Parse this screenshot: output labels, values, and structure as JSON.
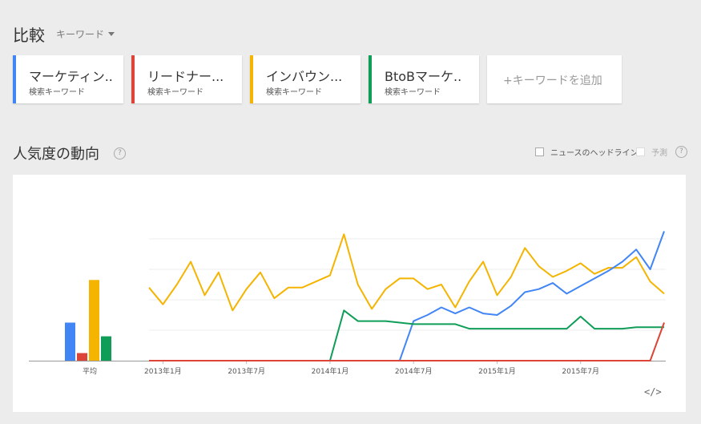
{
  "header": {
    "title": "比較",
    "dropdown_label": "キーワード"
  },
  "keywords": [
    {
      "label": "マーケティン..",
      "sub": "検索キーワード",
      "color": "#4285f4"
    },
    {
      "label": "リードナー...",
      "sub": "検索キーワード",
      "color": "#db4437"
    },
    {
      "label": "インバウン...",
      "sub": "検索キーワード",
      "color": "#f4b400"
    },
    {
      "label": "BtoBマーケ..",
      "sub": "検索キーワード",
      "color": "#0f9d58"
    }
  ],
  "add_keyword": "+キーワードを追加",
  "section": {
    "title": "人気度の動向",
    "help": "?"
  },
  "options": {
    "news_headlines": "ニュースのヘッドライン",
    "forecast": "予測",
    "help": "?"
  },
  "embed_label": "</>",
  "chart_data": {
    "type": "line",
    "ylim": [
      0,
      100
    ],
    "x_ticks": [
      "2013年1月",
      "2013年7月",
      "2014年1月",
      "2014年7月",
      "2015年1月",
      "2015年7月"
    ],
    "x_tick_positions": [
      1,
      7,
      13,
      19,
      25,
      31
    ],
    "average": {
      "label": "平均",
      "values": [
        25,
        5,
        53,
        16
      ]
    },
    "series": [
      {
        "color": "#4285f4",
        "values": [
          0,
          0,
          0,
          0,
          0,
          0,
          0,
          0,
          0,
          0,
          0,
          0,
          0,
          0,
          0,
          0,
          0,
          0,
          0,
          26,
          30,
          35,
          31,
          35,
          31,
          30,
          36,
          45,
          47,
          51,
          44,
          49,
          54,
          59,
          65,
          73,
          60,
          85
        ]
      },
      {
        "color": "#db4437",
        "values": [
          0,
          0,
          0,
          0,
          0,
          0,
          0,
          0,
          0,
          0,
          0,
          0,
          0,
          0,
          0,
          0,
          0,
          0,
          0,
          0,
          0,
          0,
          0,
          0,
          0,
          0,
          0,
          0,
          0,
          0,
          0,
          0,
          0,
          0,
          0,
          0,
          0,
          25
        ]
      },
      {
        "color": "#f4b400",
        "values": [
          48,
          37,
          50,
          65,
          43,
          58,
          33,
          47,
          58,
          41,
          48,
          48,
          52,
          56,
          83,
          50,
          34,
          47,
          54,
          54,
          47,
          50,
          35,
          52,
          65,
          43,
          55,
          74,
          62,
          55,
          59,
          64,
          57,
          61,
          61,
          68,
          52,
          44
        ]
      },
      {
        "color": "#0f9d58",
        "values": [
          0,
          0,
          0,
          0,
          0,
          0,
          0,
          0,
          0,
          0,
          0,
          0,
          0,
          0,
          33,
          26,
          26,
          26,
          25,
          24,
          24,
          24,
          24,
          21,
          21,
          21,
          21,
          21,
          21,
          21,
          21,
          29,
          21,
          21,
          21,
          22,
          22,
          22
        ]
      }
    ]
  }
}
